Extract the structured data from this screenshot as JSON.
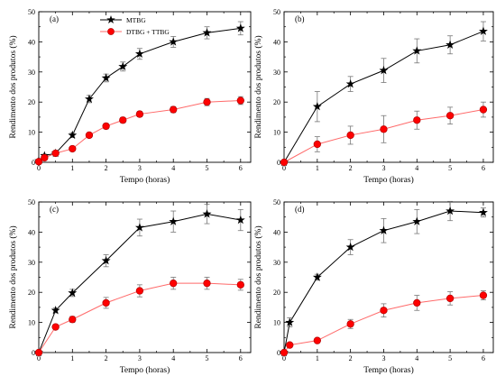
{
  "legend": {
    "series_labels": [
      "MTBG",
      "DTBG + TTBG"
    ]
  },
  "colors": {
    "MTBG": "#000000",
    "DTBG + TTBG": "#ff0000",
    "errorbar": "#777777",
    "line_red": "#ff6a6a"
  },
  "chart_data": [
    {
      "type": "line",
      "panel": "(a)",
      "xlabel": "Tempo (horas)",
      "ylabel": "Rendimento dos produtos (%)",
      "xlim": [
        0,
        6.3
      ],
      "ylim": [
        0,
        50
      ],
      "xticks": [
        0,
        1,
        2,
        3,
        4,
        5,
        6
      ],
      "yticks": [
        0,
        10,
        20,
        30,
        40,
        50
      ],
      "legend_position": "top-left",
      "series": [
        {
          "name": "MTBG",
          "marker": "star",
          "x": [
            0,
            0.17,
            0.5,
            1,
            1.5,
            2,
            2.5,
            3,
            4,
            5,
            6
          ],
          "y": [
            0.5,
            2.2,
            3,
            9,
            21,
            28,
            31.8,
            36,
            40,
            43,
            44.5
          ],
          "err": [
            0.3,
            0.5,
            0.6,
            0.8,
            1.2,
            1.3,
            1.5,
            1.8,
            1.8,
            2,
            2.2
          ]
        },
        {
          "name": "DTBG + TTBG",
          "marker": "circle",
          "x": [
            0,
            0.17,
            0.5,
            1,
            1.5,
            2,
            2.5,
            3,
            4,
            5,
            6
          ],
          "y": [
            0.2,
            1.5,
            3,
            4.5,
            9,
            12,
            14,
            16,
            17.5,
            20,
            20.5
          ],
          "err": [
            0.2,
            0.4,
            0.5,
            0.5,
            0.8,
            0.9,
            0.9,
            0.9,
            1,
            1.2,
            1.3
          ]
        }
      ]
    },
    {
      "type": "line",
      "panel": "(b)",
      "xlabel": "Tempo (horas)",
      "ylabel": "Rendimento dos produtos (%)",
      "xlim": [
        0,
        6.3
      ],
      "ylim": [
        0,
        50
      ],
      "xticks": [
        0,
        1,
        2,
        3,
        4,
        5,
        6
      ],
      "yticks": [
        0,
        10,
        20,
        30,
        40,
        50
      ],
      "series": [
        {
          "name": "MTBG",
          "marker": "star",
          "x": [
            0,
            1,
            2,
            3,
            4,
            5,
            6
          ],
          "y": [
            0,
            18.5,
            26,
            30.5,
            37,
            39,
            43.5
          ],
          "err": [
            0,
            5,
            2.5,
            4,
            4,
            3,
            3.2
          ]
        },
        {
          "name": "DTBG + TTBG",
          "marker": "circle",
          "x": [
            0,
            1,
            2,
            3,
            4,
            5,
            6
          ],
          "y": [
            0,
            6,
            9,
            11,
            14,
            15.5,
            17.5
          ],
          "err": [
            0,
            2.5,
            3,
            4.5,
            3,
            2.8,
            2.5
          ]
        }
      ]
    },
    {
      "type": "line",
      "panel": "(c)",
      "xlabel": "Tempo (horas)",
      "ylabel": "Rendimento dos produtos (%)",
      "xlim": [
        0,
        6.3
      ],
      "ylim": [
        0,
        50
      ],
      "xticks": [
        0,
        1,
        2,
        3,
        4,
        5,
        6
      ],
      "yticks": [
        0,
        10,
        20,
        30,
        40,
        50
      ],
      "series": [
        {
          "name": "MTBG",
          "marker": "star",
          "x": [
            0,
            0.5,
            1,
            2,
            3,
            4,
            5,
            6
          ],
          "y": [
            0,
            14,
            19.8,
            30.5,
            41.5,
            43.5,
            46,
            44
          ],
          "err": [
            0,
            0.8,
            1.2,
            2,
            2.8,
            3.5,
            3.2,
            3.5
          ]
        },
        {
          "name": "DTBG + TTBG",
          "marker": "circle",
          "x": [
            0,
            0.5,
            1,
            2,
            3,
            4,
            5,
            6
          ],
          "y": [
            0,
            8.5,
            11,
            16.5,
            20.5,
            23,
            23,
            22.5
          ],
          "err": [
            0,
            0.6,
            1,
            1.8,
            2,
            2,
            2,
            1.8
          ]
        }
      ]
    },
    {
      "type": "line",
      "panel": "(d)",
      "xlabel": "Tempo (horas)",
      "ylabel": "Rendimento dos produtos (%)",
      "xlim": [
        0,
        6.3
      ],
      "ylim": [
        0,
        50
      ],
      "xticks": [
        0,
        1,
        2,
        3,
        4,
        5,
        6
      ],
      "yticks": [
        0,
        10,
        20,
        30,
        40,
        50
      ],
      "series": [
        {
          "name": "MTBG",
          "marker": "star",
          "x": [
            0,
            0.17,
            1,
            2,
            3,
            4,
            5,
            6
          ],
          "y": [
            0,
            10,
            25,
            35,
            40.5,
            43.5,
            47,
            46.5
          ],
          "err": [
            0,
            1.5,
            1,
            2.5,
            4,
            4,
            3.2,
            1.5
          ]
        },
        {
          "name": "DTBG + TTBG",
          "marker": "circle",
          "x": [
            0,
            0.17,
            1,
            2,
            3,
            4,
            5,
            6
          ],
          "y": [
            0,
            2.5,
            4,
            9.5,
            14,
            16.5,
            18,
            19
          ],
          "err": [
            0,
            0.5,
            0.6,
            1.5,
            2.2,
            2.5,
            2.2,
            1.5
          ]
        }
      ]
    }
  ]
}
